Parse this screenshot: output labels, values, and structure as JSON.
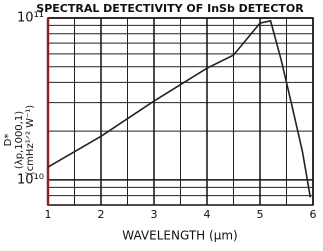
{
  "chart_data": {
    "type": "line",
    "title": "SPECTRAL DETECTIVITY OF InSb DETECTOR",
    "xlabel": "WAVELENGTH (µm)",
    "ylabel": [
      "D*",
      "(λp,1000,1)",
      "(cmHz¹ᐟ² W⁻¹)"
    ],
    "x": [
      1,
      2,
      3,
      4,
      4.5,
      5,
      5.2,
      5.4,
      5.6,
      5.8,
      5.95
    ],
    "series": [
      {
        "color": "#222222",
        "values": [
          12000000000,
          18600000000,
          30700000000,
          49000000000,
          59000000000,
          93000000000,
          96000000000,
          55000000000,
          29000000000,
          15000000000,
          7800000000
        ]
      }
    ],
    "xlim": [
      1,
      6
    ],
    "xticks": [
      1,
      2,
      3,
      4,
      5,
      6
    ],
    "xminor": [
      1.5,
      2.5,
      3.5,
      4.5,
      5.5
    ],
    "ylim": [
      7000000000,
      100000000000
    ],
    "yticks": [
      {
        "value": 10000000000,
        "label": "10¹⁰"
      },
      {
        "value": 100000000000,
        "label": "10¹¹"
      }
    ],
    "yminor": [
      8000000000,
      9000000000,
      20000000000,
      30000000000,
      40000000000,
      50000000000,
      60000000000,
      70000000000,
      80000000000,
      90000000000
    ],
    "log_y": true,
    "grid": true,
    "axis_color": "#8b2323"
  }
}
